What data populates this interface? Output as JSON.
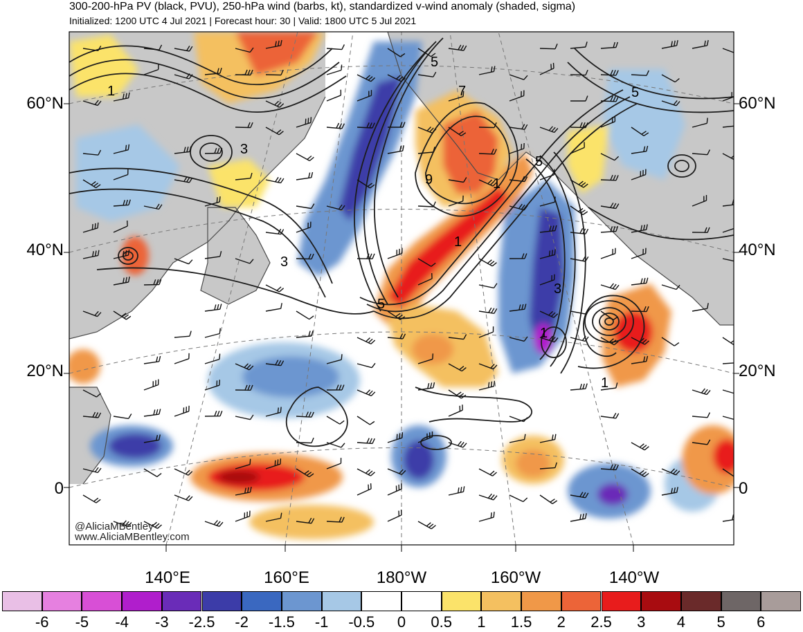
{
  "header": {
    "title": "300-200-hPa PV (black, PVU), 250-hPa wind (barbs, kt), standardized v-wind anomaly (shaded, sigma)",
    "subtitle": "Initialized: 1200 UTC 4 Jul 2021 | Forecast hour: 30 | Valid: 1800 UTC 5 Jul 2021"
  },
  "map": {
    "lat_labels": [
      "60°N",
      "40°N",
      "20°N",
      "0"
    ],
    "lon_labels": [
      "140°E",
      "160°E",
      "180°W",
      "160°W",
      "140°W"
    ],
    "contour_labels": [
      "1",
      "3",
      "5",
      "7",
      "9",
      "5",
      "3",
      "5",
      "1",
      "5",
      "1",
      "3",
      "1",
      "1"
    ],
    "credit": [
      "@AliciaMBentley",
      "www.AliciaMBentley.com"
    ]
  },
  "colorbar": {
    "labels": [
      "-6",
      "-5",
      "-4",
      "-3",
      "-2.5",
      "-2",
      "-1.5",
      "-1",
      "-0.5",
      "0",
      "0.5",
      "1",
      "1.5",
      "2",
      "2.5",
      "3",
      "4",
      "5",
      "6"
    ],
    "colors": [
      "#e9bfe6",
      "#e680e0",
      "#d84fd6",
      "#b01ecc",
      "#6a2cb8",
      "#3c3ca8",
      "#3a68c0",
      "#6c96d0",
      "#a6c8e6",
      "#ffffff",
      "#ffffff",
      "#fbe36a",
      "#f4c060",
      "#f09848",
      "#ec6438",
      "#e81c1c",
      "#a80c10",
      "#6a2a2a",
      "#6e6666",
      "#a89c9a"
    ]
  },
  "colors": {
    "land": "#c8c8c8",
    "coast": "#4a4a4a",
    "contour": "#1c1c1c",
    "barb": "#111111"
  }
}
